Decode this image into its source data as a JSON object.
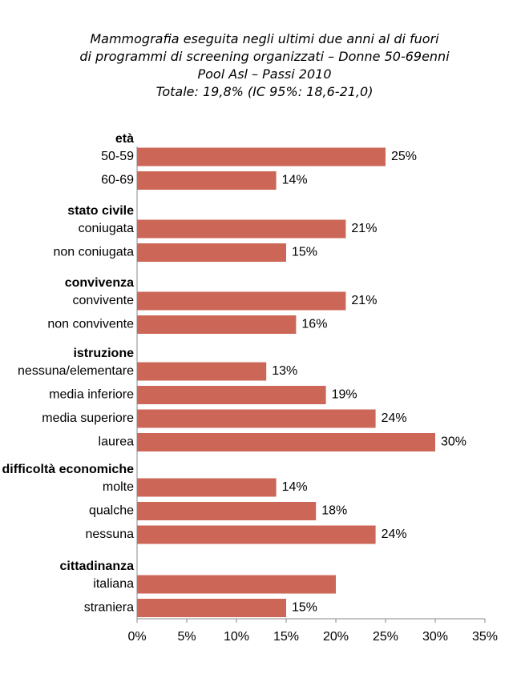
{
  "title_lines": [
    "Mammografia eseguita negli ultimi due anni al di fuori",
    "di programmi di screening organizzati – Donne 50-69enni",
    "Pool Asl – Passi 2010",
    "Totale: 19,8% (IC 95%: 18,6-21,0)"
  ],
  "chart_data": {
    "type": "bar",
    "orientation": "horizontal",
    "bar_color": "#CC6656",
    "xlim": [
      0,
      35
    ],
    "x_ticks": [
      "0%",
      "5%",
      "10%",
      "15%",
      "20%",
      "25%",
      "30%",
      "35%"
    ],
    "groups": [
      {
        "name": "età",
        "items": [
          {
            "label": "50-59",
            "value": 25,
            "value_label": "25%"
          },
          {
            "label": "60-69",
            "value": 14,
            "value_label": "14%"
          }
        ]
      },
      {
        "name": "stato civile",
        "items": [
          {
            "label": "coniugata",
            "value": 21,
            "value_label": "21%"
          },
          {
            "label": "non coniugata",
            "value": 15,
            "value_label": "15%"
          }
        ]
      },
      {
        "name": "convivenza",
        "items": [
          {
            "label": "convivente",
            "value": 21,
            "value_label": "21%"
          },
          {
            "label": "non convivente",
            "value": 16,
            "value_label": "16%"
          }
        ]
      },
      {
        "name": "istruzione",
        "items": [
          {
            "label": "nessuna/elementare",
            "value": 13,
            "value_label": "13%"
          },
          {
            "label": "media inferiore",
            "value": 19,
            "value_label": "19%"
          },
          {
            "label": "media superiore",
            "value": 24,
            "value_label": "24%"
          },
          {
            "label": "laurea",
            "value": 30,
            "value_label": "30%"
          }
        ]
      },
      {
        "name": "difficoltà economiche",
        "items": [
          {
            "label": "molte",
            "value": 14,
            "value_label": "14%"
          },
          {
            "label": "qualche",
            "value": 18,
            "value_label": "18%"
          },
          {
            "label": "nessuna",
            "value": 24,
            "value_label": "24%"
          }
        ]
      },
      {
        "name": "cittadinanza",
        "items": [
          {
            "label": "italiana",
            "value": 20,
            "value_label": ""
          },
          {
            "label": "straniera",
            "value": 15,
            "value_label": "15%"
          }
        ]
      }
    ]
  }
}
